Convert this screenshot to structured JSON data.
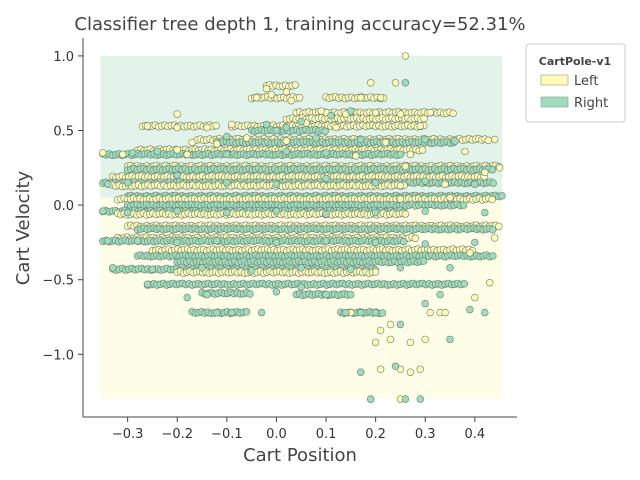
{
  "chart_data": {
    "type": "scatter",
    "title": "Classifier tree depth 1, training accuracy=52.31%",
    "xlabel": "Cart Position",
    "ylabel": "Cart Velocity",
    "xlim": [
      -0.39,
      0.485
    ],
    "ylim": [
      -1.42,
      1.12
    ],
    "xticks": [
      -0.3,
      -0.2,
      -0.1,
      0.0,
      0.1,
      0.2,
      0.3,
      0.4
    ],
    "xtick_labels": [
      "−0.3",
      "−0.2",
      "−0.1",
      "0.0",
      "0.1",
      "0.2",
      "0.3",
      "0.4"
    ],
    "yticks": [
      -1.0,
      -0.5,
      0.0,
      0.5,
      1.0
    ],
    "ytick_labels": [
      "−1.0",
      "−0.5",
      "0.0",
      "0.5",
      "1.0"
    ],
    "decision_regions": [
      {
        "class": "Right",
        "x": [
          -0.355,
          0.455
        ],
        "y": [
          0.05,
          1.0
        ],
        "color": "#e2f3ea"
      },
      {
        "class": "Left",
        "x": [
          -0.355,
          0.455
        ],
        "y": [
          -1.3,
          0.05
        ],
        "color": "#fefde8"
      }
    ],
    "legend": {
      "title": "CartPole-v1",
      "position": "upper right, outside plot",
      "entries": [
        {
          "label": "Left",
          "color": "#fdfbb8"
        },
        {
          "label": "Right",
          "color": "#9ddcbc"
        }
      ]
    },
    "series": [
      {
        "name": "Left",
        "color": "#fdfbb8",
        "points": [
          [
            0.26,
            1.0
          ],
          [
            0.19,
            0.82
          ],
          [
            0.24,
            0.82
          ],
          [
            0.21,
            0.72
          ],
          [
            0.17,
            0.72
          ],
          [
            -0.02,
            0.78
          ],
          [
            -0.01,
            0.74
          ],
          [
            0.02,
            0.76
          ],
          [
            -0.04,
            0.72
          ],
          [
            0.03,
            0.7
          ],
          [
            0.1,
            0.62
          ],
          [
            0.14,
            0.61
          ],
          [
            0.2,
            0.62
          ],
          [
            0.25,
            0.61
          ],
          [
            0.31,
            0.62
          ],
          [
            -0.2,
            0.61
          ],
          [
            -0.26,
            0.53
          ],
          [
            -0.2,
            0.52
          ],
          [
            -0.14,
            0.52
          ],
          [
            -0.09,
            0.54
          ],
          [
            0.06,
            0.55
          ],
          [
            0.12,
            0.52
          ],
          [
            -0.17,
            0.42
          ],
          [
            -0.12,
            0.41
          ],
          [
            0.02,
            0.43
          ],
          [
            0.22,
            0.42
          ],
          [
            0.44,
            0.44
          ],
          [
            -0.35,
            0.35
          ],
          [
            -0.31,
            0.34
          ],
          [
            -0.18,
            0.34
          ],
          [
            0.27,
            0.34
          ],
          [
            0.38,
            0.36
          ],
          [
            -0.06,
            0.45
          ],
          [
            0.16,
            0.33
          ],
          [
            0.26,
            0.26
          ],
          [
            0.42,
            0.22
          ],
          [
            0.34,
            0.14
          ],
          [
            0.25,
            0.13
          ],
          [
            0.25,
            0.04
          ],
          [
            0.35,
            0.05
          ],
          [
            0.26,
            -0.06
          ],
          [
            0.45,
            0.25
          ],
          [
            -0.2,
            0.37
          ],
          [
            0.09,
            0.63
          ],
          [
            0.29,
            0.53
          ],
          [
            0.31,
            -0.72
          ],
          [
            0.33,
            -0.72
          ],
          [
            0.34,
            -0.72
          ],
          [
            0.3,
            -0.9
          ],
          [
            0.27,
            -0.92
          ],
          [
            0.23,
            -0.9
          ],
          [
            0.2,
            -0.92
          ],
          [
            0.21,
            -1.1
          ],
          [
            0.25,
            -1.1
          ],
          [
            0.27,
            -1.12
          ],
          [
            0.25,
            -1.3
          ],
          [
            0.19,
            -1.3
          ],
          [
            0.23,
            -0.8
          ],
          [
            0.43,
            -0.52
          ],
          [
            0.4,
            -0.62
          ],
          [
            0.39,
            -0.32
          ],
          [
            0.44,
            -0.22
          ],
          [
            0.21,
            -0.84
          ],
          [
            0.15,
            -0.72
          ],
          [
            0.29,
            -1.1
          ]
        ]
      },
      {
        "name": "Right",
        "color": "#9ddcbc",
        "points": [
          [
            0.26,
            0.82
          ],
          [
            -0.02,
            0.54
          ],
          [
            0.0,
            0.5
          ],
          [
            0.02,
            0.52
          ],
          [
            0.05,
            0.56
          ],
          [
            0.11,
            0.6
          ],
          [
            0.15,
            0.63
          ],
          [
            -0.1,
            0.46
          ],
          [
            0.08,
            0.45
          ],
          [
            0.17,
            0.44
          ],
          [
            0.3,
            0.44
          ],
          [
            0.36,
            0.43
          ],
          [
            -0.29,
            0.35
          ],
          [
            -0.24,
            0.36
          ],
          [
            -0.1,
            0.34
          ],
          [
            0.02,
            0.36
          ],
          [
            0.1,
            0.35
          ],
          [
            -0.34,
            0.14
          ],
          [
            -0.3,
            0.15
          ],
          [
            -0.2,
            0.2
          ],
          [
            -0.1,
            0.15
          ],
          [
            0.0,
            0.14
          ],
          [
            0.1,
            0.18
          ],
          [
            0.2,
            0.15
          ],
          [
            0.3,
            0.16
          ],
          [
            0.4,
            0.14
          ],
          [
            -0.35,
            -0.04
          ],
          [
            -0.3,
            -0.05
          ],
          [
            -0.2,
            -0.04
          ],
          [
            -0.1,
            -0.05
          ],
          [
            0.0,
            -0.04
          ],
          [
            0.1,
            -0.06
          ],
          [
            0.2,
            -0.05
          ],
          [
            0.3,
            -0.04
          ],
          [
            0.42,
            -0.05
          ],
          [
            -0.34,
            -0.24
          ],
          [
            -0.28,
            -0.24
          ],
          [
            -0.2,
            -0.25
          ],
          [
            -0.12,
            -0.24
          ],
          [
            0.0,
            -0.25
          ],
          [
            0.1,
            -0.24
          ],
          [
            0.2,
            -0.25
          ],
          [
            0.3,
            -0.26
          ],
          [
            0.4,
            -0.25
          ],
          [
            -0.33,
            -0.42
          ],
          [
            -0.25,
            -0.43
          ],
          [
            -0.15,
            -0.42
          ],
          [
            -0.05,
            -0.44
          ],
          [
            0.05,
            -0.42
          ],
          [
            0.15,
            -0.43
          ],
          [
            0.25,
            -0.42
          ],
          [
            0.35,
            -0.42
          ],
          [
            -0.26,
            -0.53
          ],
          [
            -0.18,
            -0.62
          ],
          [
            -0.14,
            -0.6
          ],
          [
            -0.12,
            -0.72
          ],
          [
            -0.09,
            -0.72
          ],
          [
            -0.03,
            -0.72
          ],
          [
            0.0,
            -0.58
          ],
          [
            0.05,
            -0.55
          ],
          [
            0.1,
            -0.6
          ],
          [
            0.14,
            -0.72
          ],
          [
            0.17,
            -0.72
          ],
          [
            0.2,
            -0.72
          ],
          [
            0.3,
            -0.66
          ],
          [
            0.39,
            -0.7
          ],
          [
            0.42,
            -0.72
          ],
          [
            0.35,
            -0.9
          ],
          [
            0.17,
            -1.12
          ],
          [
            0.19,
            -1.3
          ],
          [
            0.26,
            -1.3
          ],
          [
            0.29,
            -1.3
          ],
          [
            0.24,
            -1.08
          ],
          [
            0.25,
            -0.8
          ],
          [
            0.33,
            -0.6
          ]
        ]
      }
    ],
    "stripes": [
      {
        "y": 0.8,
        "x": [
          -0.02,
          0.04
        ],
        "color": "#fdfbb8"
      },
      {
        "y": 0.72,
        "x": [
          -0.05,
          0.05
        ],
        "color": "#fdfbb8"
      },
      {
        "y": 0.72,
        "x": [
          0.1,
          0.22
        ],
        "color": "#fdfbb8"
      },
      {
        "y": 0.62,
        "x": [
          0.04,
          0.36
        ],
        "color": "#fdfbb8"
      },
      {
        "y": 0.58,
        "x": [
          0.02,
          0.3
        ],
        "color": "#fdfbb8"
      },
      {
        "y": 0.53,
        "x": [
          -0.27,
          -0.12
        ],
        "color": "#fdfbb8"
      },
      {
        "y": 0.53,
        "x": [
          -0.09,
          0.3
        ],
        "color": "#fdfbb8"
      },
      {
        "y": 0.5,
        "x": [
          -0.05,
          0.1
        ],
        "color": "#9ddcbc"
      },
      {
        "y": 0.44,
        "x": [
          -0.16,
          0.43
        ],
        "color": "#fdfbb8"
      },
      {
        "y": 0.42,
        "x": [
          -0.12,
          0.36
        ],
        "color": "#9ddcbc"
      },
      {
        "y": 0.37,
        "x": [
          -0.28,
          0.3
        ],
        "color": "#fdfbb8"
      },
      {
        "y": 0.34,
        "x": [
          -0.35,
          0.25
        ],
        "color": "#9ddcbc"
      },
      {
        "y": 0.26,
        "x": [
          -0.3,
          0.45
        ],
        "color": "#fdfbb8"
      },
      {
        "y": 0.24,
        "x": [
          -0.3,
          0.44
        ],
        "color": "#9ddcbc"
      },
      {
        "y": 0.19,
        "x": [
          -0.33,
          0.42
        ],
        "color": "#fdfbb8"
      },
      {
        "y": 0.15,
        "x": [
          -0.35,
          0.44
        ],
        "color": "#9ddcbc"
      },
      {
        "y": 0.13,
        "x": [
          -0.33,
          0.26
        ],
        "color": "#fdfbb8"
      },
      {
        "y": 0.06,
        "x": [
          -0.3,
          0.46
        ],
        "color": "#9ddcbc"
      },
      {
        "y": 0.04,
        "x": [
          -0.32,
          0.44
        ],
        "color": "#fdfbb8"
      },
      {
        "y": 0.0,
        "x": [
          -0.3,
          0.38
        ],
        "color": "#9ddcbc"
      },
      {
        "y": -0.04,
        "x": [
          -0.35,
          0.26
        ],
        "color": "#9ddcbc"
      },
      {
        "y": -0.06,
        "x": [
          -0.32,
          0.26
        ],
        "color": "#fdfbb8"
      },
      {
        "y": -0.14,
        "x": [
          -0.3,
          0.45
        ],
        "color": "#fdfbb8"
      },
      {
        "y": -0.16,
        "x": [
          -0.28,
          0.44
        ],
        "color": "#9ddcbc"
      },
      {
        "y": -0.22,
        "x": [
          -0.32,
          0.28
        ],
        "color": "#fdfbb8"
      },
      {
        "y": -0.24,
        "x": [
          -0.35,
          0.26
        ],
        "color": "#9ddcbc"
      },
      {
        "y": -0.3,
        "x": [
          -0.25,
          0.4
        ],
        "color": "#fdfbb8"
      },
      {
        "y": -0.34,
        "x": [
          -0.28,
          0.44
        ],
        "color": "#9ddcbc"
      },
      {
        "y": -0.38,
        "x": [
          -0.2,
          0.3
        ],
        "color": "#9ddcbc"
      },
      {
        "y": -0.43,
        "x": [
          -0.33,
          0.2
        ],
        "color": "#9ddcbc"
      },
      {
        "y": -0.45,
        "x": [
          -0.2,
          0.2
        ],
        "color": "#fdfbb8"
      },
      {
        "y": -0.53,
        "x": [
          -0.26,
          0.38
        ],
        "color": "#9ddcbc"
      },
      {
        "y": -0.59,
        "x": [
          -0.15,
          -0.05
        ],
        "color": "#9ddcbc"
      },
      {
        "y": -0.6,
        "x": [
          0.04,
          0.15
        ],
        "color": "#9ddcbc"
      },
      {
        "y": -0.72,
        "x": [
          -0.17,
          -0.06
        ],
        "color": "#9ddcbc"
      },
      {
        "y": -0.72,
        "x": [
          0.13,
          0.22
        ],
        "color": "#9ddcbc"
      }
    ]
  }
}
